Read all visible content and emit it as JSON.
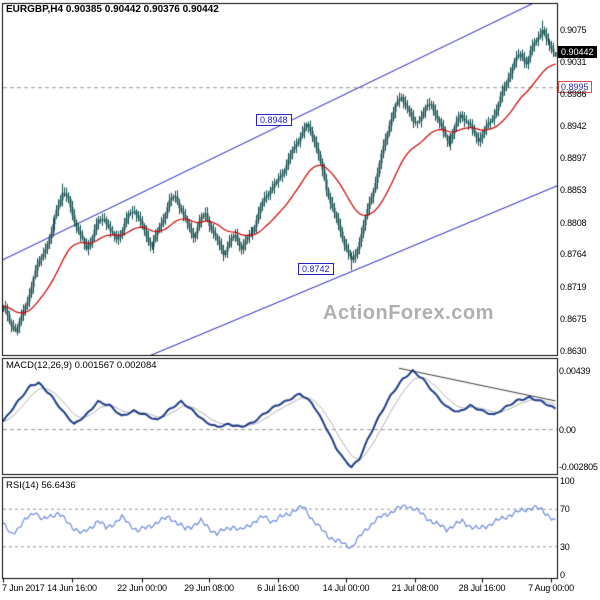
{
  "watermark": "ActionForex.com",
  "colors": {
    "candle": "#174f4f",
    "ma": "#cc0000",
    "channel": "#2323c8",
    "macd_main": "#1f3c8c",
    "macd_signal": "#b0b0b0",
    "trendline": "#3a3a3a",
    "rsi": "#6f8cdd",
    "dashed": "#999999",
    "border": "#000000",
    "price_box_bg": "#000000",
    "price_box_text": "#ffffff",
    "level_box_border": "#d05050",
    "swing_box": "#2323c8",
    "watermark": "#b0b0b0"
  },
  "main": {
    "title": "EURGBP,H4 0.90385 0.90442 0.90376 0.90442",
    "axis_labels": [
      "0.9075",
      "0.9031",
      "0.8986",
      "0.8942",
      "0.8897",
      "0.8853",
      "0.8808",
      "0.8764",
      "0.8719",
      "0.8675",
      "0.8630"
    ],
    "current_price_label": "0.90442",
    "level_label": "0.8995",
    "swing_high_label": "0.8948",
    "swing_low_label": "0.8742"
  },
  "macd_panel": {
    "label": "MACD(12,26,9) 0.001567 0.002084",
    "axis_labels": [
      "0.00439",
      "0.00",
      "-0.002805"
    ]
  },
  "rsi_panel": {
    "label": "RSI(14) 56.6436",
    "axis_labels": [
      "100",
      "70",
      "30",
      "0"
    ]
  },
  "x_axis": {
    "labels": [
      "7 Jun 2017",
      "14 Jun 16:00",
      "22 Jun 00:00",
      "29 Jun 08:00",
      "6 Jul 16:00",
      "14 Jul 00:00",
      "21 Jul 08:00",
      "28 Jul 16:00",
      "7 Aug 00:00"
    ]
  },
  "chart_data": {
    "type": "candlestick",
    "symbol": "EURGBP",
    "timeframe": "H4",
    "bars_count": 280,
    "last_bar": {
      "open": 0.90385,
      "high": 0.90442,
      "low": 0.90376,
      "close": 0.90442
    },
    "price_axis": {
      "ticks": [
        0.9075,
        0.9031,
        0.8986,
        0.8942,
        0.8897,
        0.8853,
        0.8808,
        0.8764,
        0.8719,
        0.8675,
        0.863
      ],
      "top": 0.9112,
      "bottom": 0.8625
    },
    "x_tick_bars": [
      0,
      35,
      70,
      104,
      139,
      173,
      208,
      242,
      277
    ],
    "close_waypoints": [
      [
        0,
        0.869
      ],
      [
        3,
        0.8668
      ],
      [
        6,
        0.866
      ],
      [
        9,
        0.8678
      ],
      [
        12,
        0.8702
      ],
      [
        15,
        0.8732
      ],
      [
        18,
        0.8752
      ],
      [
        21,
        0.8772
      ],
      [
        24,
        0.879
      ],
      [
        27,
        0.8828
      ],
      [
        30,
        0.8852
      ],
      [
        33,
        0.884
      ],
      [
        36,
        0.8812
      ],
      [
        39,
        0.8786
      ],
      [
        42,
        0.877
      ],
      [
        45,
        0.8788
      ],
      [
        48,
        0.881
      ],
      [
        51,
        0.8818
      ],
      [
        54,
        0.8796
      ],
      [
        57,
        0.8786
      ],
      [
        60,
        0.8798
      ],
      [
        63,
        0.8815
      ],
      [
        66,
        0.8825
      ],
      [
        69,
        0.8808
      ],
      [
        72,
        0.879
      ],
      [
        75,
        0.8778
      ],
      [
        78,
        0.8795
      ],
      [
        81,
        0.8815
      ],
      [
        84,
        0.8835
      ],
      [
        87,
        0.8842
      ],
      [
        90,
        0.8825
      ],
      [
        93,
        0.8805
      ],
      [
        96,
        0.8792
      ],
      [
        99,
        0.881
      ],
      [
        102,
        0.882
      ],
      [
        105,
        0.8798
      ],
      [
        108,
        0.8778
      ],
      [
        111,
        0.8765
      ],
      [
        114,
        0.8782
      ],
      [
        117,
        0.8792
      ],
      [
        120,
        0.8775
      ],
      [
        123,
        0.8785
      ],
      [
        126,
        0.8796
      ],
      [
        129,
        0.8818
      ],
      [
        132,
        0.884
      ],
      [
        135,
        0.8856
      ],
      [
        138,
        0.8864
      ],
      [
        141,
        0.888
      ],
      [
        144,
        0.8896
      ],
      [
        147,
        0.891
      ],
      [
        150,
        0.8928
      ],
      [
        153,
        0.894
      ],
      [
        155,
        0.8934
      ],
      [
        157,
        0.8924
      ],
      [
        159,
        0.8904
      ],
      [
        161,
        0.888
      ],
      [
        163,
        0.8856
      ],
      [
        166,
        0.883
      ],
      [
        169,
        0.88
      ],
      [
        172,
        0.8778
      ],
      [
        174,
        0.8764
      ],
      [
        176,
        0.8752
      ],
      [
        178,
        0.8764
      ],
      [
        180,
        0.8786
      ],
      [
        183,
        0.8816
      ],
      [
        186,
        0.8846
      ],
      [
        189,
        0.8876
      ],
      [
        192,
        0.891
      ],
      [
        195,
        0.8944
      ],
      [
        198,
        0.8968
      ],
      [
        201,
        0.8984
      ],
      [
        204,
        0.897
      ],
      [
        207,
        0.8946
      ],
      [
        210,
        0.8952
      ],
      [
        213,
        0.8964
      ],
      [
        216,
        0.897
      ],
      [
        219,
        0.8952
      ],
      [
        222,
        0.8932
      ],
      [
        225,
        0.8922
      ],
      [
        228,
        0.894
      ],
      [
        231,
        0.8958
      ],
      [
        234,
        0.8948
      ],
      [
        237,
        0.8932
      ],
      [
        240,
        0.8922
      ],
      [
        243,
        0.8936
      ],
      [
        246,
        0.895
      ],
      [
        249,
        0.8968
      ],
      [
        252,
        0.8988
      ],
      [
        255,
        0.901
      ],
      [
        258,
        0.9028
      ],
      [
        261,
        0.904
      ],
      [
        264,
        0.903
      ],
      [
        266,
        0.9045
      ],
      [
        268,
        0.9058
      ],
      [
        270,
        0.907
      ],
      [
        272,
        0.9078
      ],
      [
        274,
        0.906
      ],
      [
        276,
        0.9052
      ],
      [
        278,
        0.9046
      ],
      [
        279,
        0.90442
      ]
    ],
    "anchors": [
      {
        "bar": 6,
        "type": "low",
        "price": 0.8656
      },
      {
        "bar": 30,
        "type": "high",
        "price": 0.8862
      },
      {
        "bar": 154,
        "type": "high",
        "price": 0.8948
      },
      {
        "bar": 176,
        "type": "low",
        "price": 0.8742
      },
      {
        "bar": 272,
        "type": "high",
        "price": 0.9088
      },
      {
        "bar": 279,
        "type": "last",
        "open": 0.90385,
        "high": 0.90442,
        "low": 0.90376,
        "close": 0.90442
      }
    ],
    "moving_average": {
      "period": 34,
      "current": 0.8995
    },
    "channel": {
      "upper": [
        [
          0,
          0.87565
        ],
        [
          268,
          0.91124
        ]
      ],
      "lower": [
        [
          75,
          0.86245
        ],
        [
          279,
          0.8858
        ]
      ]
    },
    "levels": {
      "current_price": 0.90442,
      "ma_level": 0.8995,
      "swing_high": 0.8948,
      "swing_low": 0.8742
    },
    "macd": {
      "macd_value": 0.001567,
      "signal_value": 0.002084,
      "axis_max": 0.00439,
      "axis_min": -0.002805,
      "waypoints": [
        [
          0,
          0.0006
        ],
        [
          8,
          0.0022
        ],
        [
          14,
          0.0033
        ],
        [
          18,
          0.0035
        ],
        [
          24,
          0.0026
        ],
        [
          30,
          0.0014
        ],
        [
          36,
          0.0004
        ],
        [
          42,
          0.0011
        ],
        [
          48,
          0.0021
        ],
        [
          54,
          0.0018
        ],
        [
          60,
          0.001
        ],
        [
          66,
          0.0014
        ],
        [
          72,
          0.0011
        ],
        [
          78,
          0.0007
        ],
        [
          84,
          0.0015
        ],
        [
          90,
          0.0021
        ],
        [
          96,
          0.0014
        ],
        [
          102,
          0.0006
        ],
        [
          108,
          0.0002
        ],
        [
          114,
          0.0004
        ],
        [
          120,
          0.0002
        ],
        [
          126,
          0.0005
        ],
        [
          132,
          0.0012
        ],
        [
          138,
          0.0018
        ],
        [
          144,
          0.0022
        ],
        [
          150,
          0.0027
        ],
        [
          156,
          0.002
        ],
        [
          162,
          0.0005
        ],
        [
          168,
          -0.0013
        ],
        [
          172,
          -0.0022
        ],
        [
          176,
          -0.0028
        ],
        [
          180,
          -0.0022
        ],
        [
          184,
          -0.0008
        ],
        [
          190,
          0.001
        ],
        [
          196,
          0.0026
        ],
        [
          202,
          0.0038
        ],
        [
          207,
          0.00439
        ],
        [
          212,
          0.0038
        ],
        [
          218,
          0.0027
        ],
        [
          224,
          0.0017
        ],
        [
          230,
          0.0013
        ],
        [
          236,
          0.0018
        ],
        [
          242,
          0.0014
        ],
        [
          248,
          0.0011
        ],
        [
          254,
          0.0017
        ],
        [
          260,
          0.0022
        ],
        [
          266,
          0.0024
        ],
        [
          272,
          0.0021
        ],
        [
          279,
          0.001567
        ]
      ],
      "trendline": [
        [
          200,
          0.0046
        ],
        [
          279,
          0.00215
        ]
      ]
    },
    "rsi": {
      "period": 14,
      "value": 56.6436,
      "range": [
        0,
        100
      ],
      "guides": [
        70,
        30
      ],
      "waypoints": [
        [
          0,
          54
        ],
        [
          4,
          44
        ],
        [
          8,
          50
        ],
        [
          12,
          60
        ],
        [
          16,
          68
        ],
        [
          20,
          58
        ],
        [
          24,
          63
        ],
        [
          28,
          66
        ],
        [
          32,
          57
        ],
        [
          36,
          50
        ],
        [
          40,
          44
        ],
        [
          44,
          50
        ],
        [
          48,
          58
        ],
        [
          52,
          50
        ],
        [
          56,
          55
        ],
        [
          60,
          61
        ],
        [
          64,
          54
        ],
        [
          68,
          47
        ],
        [
          72,
          50
        ],
        [
          76,
          54
        ],
        [
          80,
          58
        ],
        [
          84,
          62
        ],
        [
          88,
          55
        ],
        [
          92,
          49
        ],
        [
          96,
          53
        ],
        [
          100,
          57
        ],
        [
          104,
          50
        ],
        [
          108,
          44
        ],
        [
          112,
          48
        ],
        [
          116,
          52
        ],
        [
          120,
          47
        ],
        [
          124,
          53
        ],
        [
          128,
          58
        ],
        [
          132,
          62
        ],
        [
          136,
          57
        ],
        [
          140,
          61
        ],
        [
          144,
          65
        ],
        [
          148,
          70
        ],
        [
          152,
          72
        ],
        [
          156,
          60
        ],
        [
          160,
          50
        ],
        [
          164,
          42
        ],
        [
          168,
          37
        ],
        [
          172,
          33
        ],
        [
          176,
          30
        ],
        [
          180,
          40
        ],
        [
          184,
          50
        ],
        [
          188,
          58
        ],
        [
          192,
          63
        ],
        [
          196,
          67
        ],
        [
          200,
          71
        ],
        [
          204,
          74
        ],
        [
          208,
          70
        ],
        [
          212,
          64
        ],
        [
          216,
          58
        ],
        [
          220,
          53
        ],
        [
          224,
          49
        ],
        [
          228,
          53
        ],
        [
          232,
          57
        ],
        [
          236,
          52
        ],
        [
          240,
          49
        ],
        [
          244,
          52
        ],
        [
          248,
          56
        ],
        [
          252,
          60
        ],
        [
          256,
          64
        ],
        [
          260,
          67
        ],
        [
          264,
          70
        ],
        [
          268,
          72
        ],
        [
          272,
          69
        ],
        [
          276,
          63
        ],
        [
          279,
          56.64
        ]
      ]
    }
  }
}
